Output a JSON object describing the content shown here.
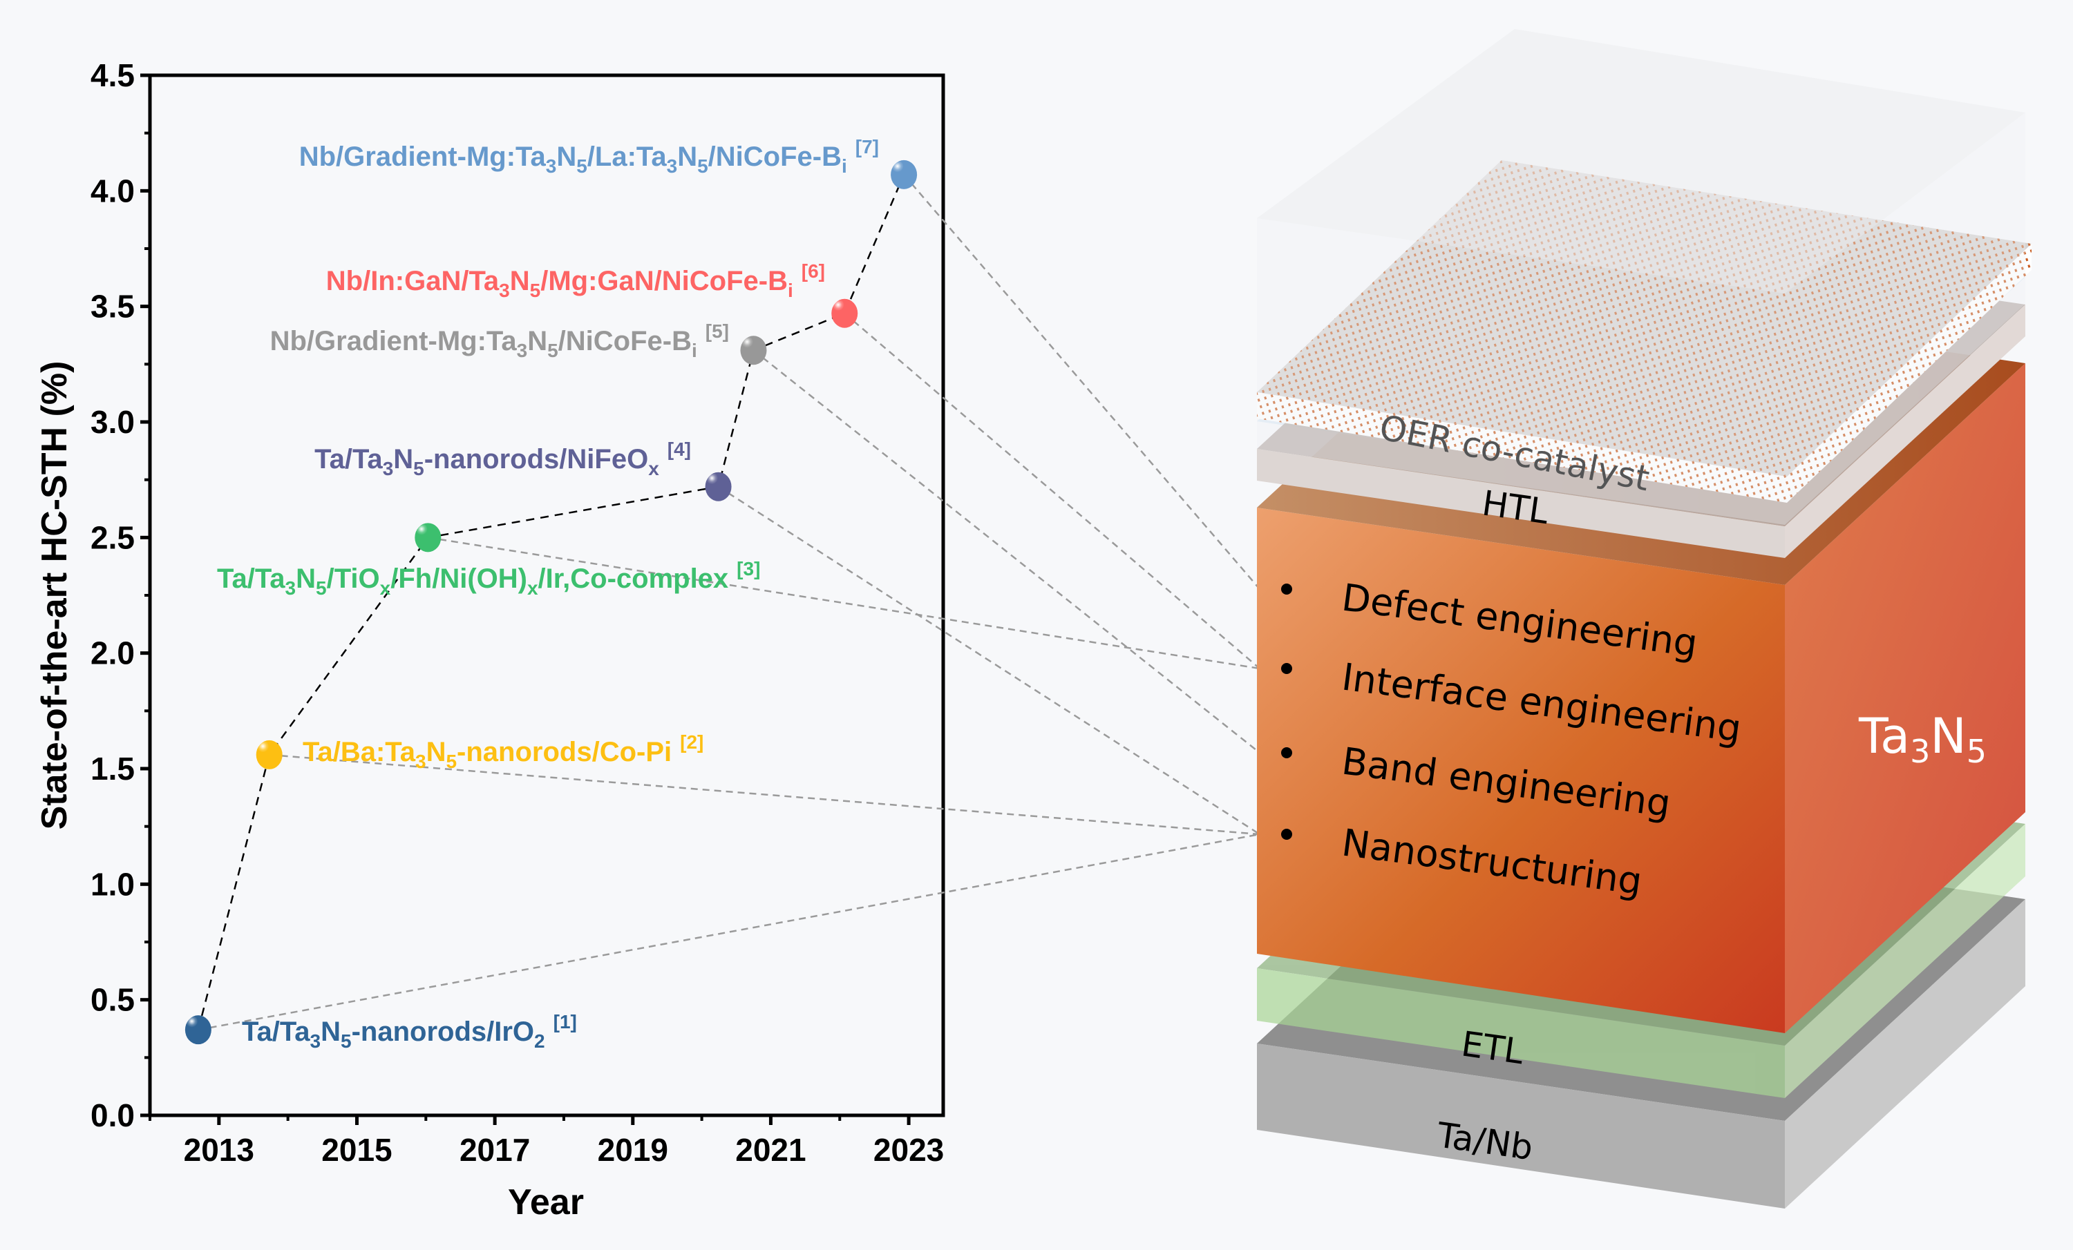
{
  "chart_data": {
    "type": "scatter",
    "title": "",
    "xlabel": "Year",
    "ylabel": "State-of-the-art HC-STH (%)",
    "xlim": [
      2012,
      2023.5
    ],
    "ylim": [
      0,
      4.5
    ],
    "xticks": [
      2013,
      2015,
      2017,
      2019,
      2021,
      2023
    ],
    "xtick_labels": [
      "2013",
      "2015",
      "2017",
      "2019",
      "2021",
      "2023"
    ],
    "yticks": [
      0,
      0.5,
      1.0,
      1.5,
      2.0,
      2.5,
      3.0,
      3.5,
      4.0,
      4.5
    ],
    "ytick_labels": [
      "0.0",
      "0.5",
      "1.0",
      "1.5",
      "2.0",
      "2.5",
      "3.0",
      "3.5",
      "4.0",
      "4.5"
    ],
    "grid": false,
    "connector": "black dashed line through points in chronological order",
    "points": [
      {
        "x": 2012.7,
        "y": 0.37,
        "color": "#2f6496",
        "label_parts": [
          [
            "Ta/Ta",
            ""
          ],
          [
            "3",
            "sub"
          ],
          [
            "N",
            ""
          ],
          [
            "5",
            "sub"
          ],
          [
            "-nanorods/IrO",
            ""
          ],
          [
            "2",
            "sub"
          ]
        ],
        "ref": "[1]",
        "label_pos": "right",
        "links_to": "Nanostructuring"
      },
      {
        "x": 2013.73,
        "y": 1.56,
        "color": "#fdbf12",
        "label_parts": [
          [
            "Ta/Ba:Ta",
            ""
          ],
          [
            "3",
            "sub"
          ],
          [
            "N",
            ""
          ],
          [
            "5",
            "sub"
          ],
          [
            "-nanorods/Co-Pi",
            ""
          ]
        ],
        "ref": "[2]",
        "label_pos": "right",
        "links_to": "Nanostructuring"
      },
      {
        "x": 2016.03,
        "y": 2.5,
        "color": "#3cbf6e",
        "label_parts": [
          [
            "Ta/Ta",
            ""
          ],
          [
            "3",
            "sub"
          ],
          [
            "N",
            ""
          ],
          [
            "5",
            "sub"
          ],
          [
            "/TiO",
            ""
          ],
          [
            "x",
            "sub"
          ],
          [
            "/Fh/Ni(OH)",
            ""
          ],
          [
            "x",
            "sub"
          ],
          [
            "/Ir,Co-complex",
            ""
          ]
        ],
        "ref": "[3]",
        "label_pos": "below",
        "links_to": "Interface engineering"
      },
      {
        "x": 2020.24,
        "y": 2.72,
        "color": "#5f6196",
        "label_parts": [
          [
            "Ta/Ta",
            ""
          ],
          [
            "3",
            "sub"
          ],
          [
            "N",
            ""
          ],
          [
            "5",
            "sub"
          ],
          [
            "-nanorods/NiFeO",
            ""
          ],
          [
            "x",
            "sub"
          ]
        ],
        "ref": "[4]",
        "label_pos": "above-left",
        "links_to": "Nanostructuring"
      },
      {
        "x": 2020.75,
        "y": 3.31,
        "color": "#989898",
        "label_parts": [
          [
            "Nb/Gradient-Mg:Ta",
            ""
          ],
          [
            "3",
            "sub"
          ],
          [
            "N",
            ""
          ],
          [
            "5",
            "sub"
          ],
          [
            "/NiCoFe-B",
            ""
          ],
          [
            "i",
            "sub"
          ]
        ],
        "ref": "[5]",
        "label_pos": "left",
        "links_to": "Band engineering"
      },
      {
        "x": 2022.07,
        "y": 3.47,
        "color": "#fd6464",
        "label_parts": [
          [
            "Nb/In:GaN/Ta",
            ""
          ],
          [
            "3",
            "sub"
          ],
          [
            "N",
            ""
          ],
          [
            "5",
            "sub"
          ],
          [
            "/Mg:GaN/NiCoFe-B",
            ""
          ],
          [
            "i",
            "sub"
          ]
        ],
        "ref": "[6]",
        "label_pos": "above-left",
        "links_to": "Interface engineering"
      },
      {
        "x": 2022.93,
        "y": 4.07,
        "color": "#6699cc",
        "label_parts": [
          [
            "Nb/Gradient-Mg:Ta",
            ""
          ],
          [
            "3",
            "sub"
          ],
          [
            "N",
            ""
          ],
          [
            "5",
            "sub"
          ],
          [
            "/La:Ta",
            ""
          ],
          [
            "3",
            "sub"
          ],
          [
            "N",
            ""
          ],
          [
            "5",
            "sub"
          ],
          [
            "/NiCoFe-B",
            ""
          ],
          [
            "i",
            "sub"
          ]
        ],
        "ref": "[7]",
        "label_pos": "left",
        "links_to": "Defect engineering"
      }
    ]
  },
  "diagram": {
    "layers": {
      "glass": "",
      "oer": "OER co-catalyst",
      "htl": "HTL",
      "absorber_main": "Ta",
      "absorber_sub1": "3",
      "absorber_mid": "N",
      "absorber_sub2": "5",
      "etl": "ETL",
      "substrate": "Ta/Nb"
    },
    "strategies": [
      "Defect engineering",
      "Interface engineering",
      "Band engineering",
      "Nanostructuring"
    ],
    "colors": {
      "absorber_light": "#eda06e",
      "absorber_dark": "#cb3d20",
      "etl": "#a8d595",
      "substrate": "#b0b0b0",
      "oer_dots": "#c8591c",
      "connector": "#9a9a9a"
    }
  }
}
